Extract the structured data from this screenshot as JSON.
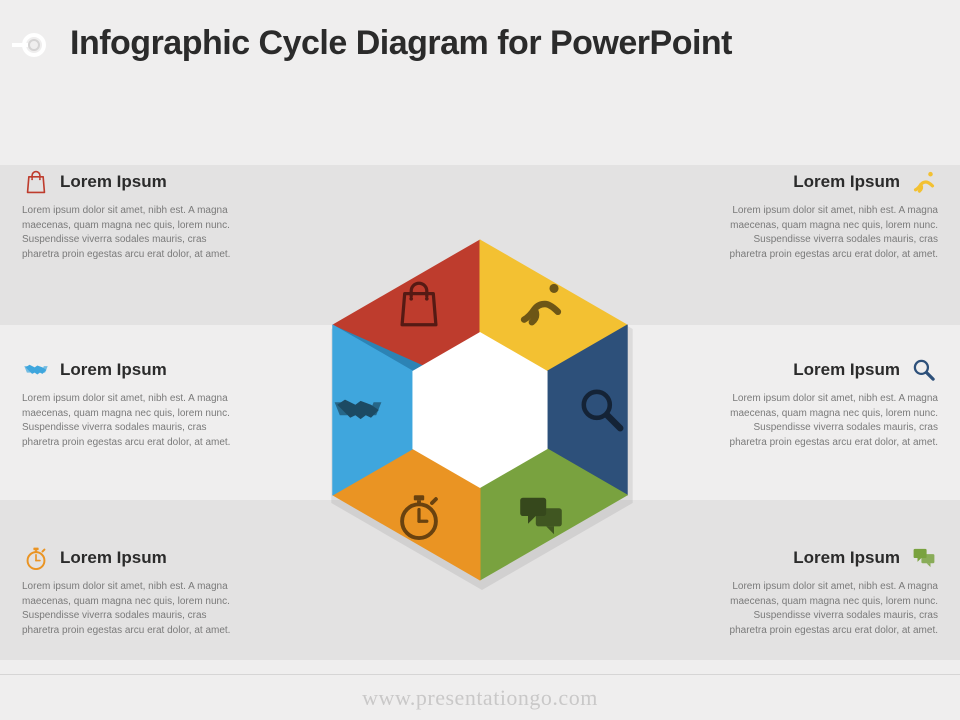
{
  "title": "Infographic Cycle Diagram for PowerPoint",
  "footer": "www.presentationgo.com",
  "background_color": "#efeeee",
  "band_color": "#e3e2e2",
  "body_text_color": "#7a7a7a",
  "title_color": "#2b2b2b",
  "placeholder_body": "Lorem ipsum dolor sit amet, nibh est. A magna maecenas, quam magna nec quis, lorem nunc. Suspendisse viverra sodales mauris, cras pharetra proin egestas arcu erat dolor, at amet.",
  "segments": [
    {
      "key": "bag",
      "angle_deg": -30,
      "color": "#be3c2d",
      "shade": "#97281c",
      "icon": "bag-icon",
      "title": "Lorem Ipsum"
    },
    {
      "key": "runner",
      "angle_deg": 30,
      "color": "#f3c132",
      "shade": "#caa028",
      "icon": "runner-icon",
      "title": "Lorem Ipsum"
    },
    {
      "key": "search",
      "angle_deg": 90,
      "color": "#2d507a",
      "shade": "#1e3a5c",
      "icon": "magnifier-icon",
      "title": "Lorem Ipsum"
    },
    {
      "key": "chat",
      "angle_deg": 150,
      "color": "#79a23f",
      "shade": "#5c7f2c",
      "icon": "chat-icon",
      "title": "Lorem Ipsum"
    },
    {
      "key": "stopwatch",
      "angle_deg": 210,
      "color": "#ea9423",
      "shade": "#c47816",
      "icon": "stopwatch-icon",
      "title": "Lorem Ipsum"
    },
    {
      "key": "handshake",
      "angle_deg": 270,
      "color": "#3fa6dd",
      "shade": "#2c83b5",
      "icon": "handshake-icon",
      "title": "Lorem Ipsum"
    }
  ],
  "left_items": [
    {
      "seg": 0
    },
    {
      "seg": 5
    },
    {
      "seg": 4
    }
  ],
  "right_items": [
    {
      "seg": 1
    },
    {
      "seg": 2
    },
    {
      "seg": 3
    }
  ],
  "hex": {
    "outer_radius": 170,
    "inner_radius": 78,
    "segment_icon_radius": 122,
    "corner_round": 16
  },
  "typography": {
    "title_fontsize": 34,
    "item_title_fontsize": 17,
    "body_fontsize": 10,
    "footer_fontsize": 22
  }
}
